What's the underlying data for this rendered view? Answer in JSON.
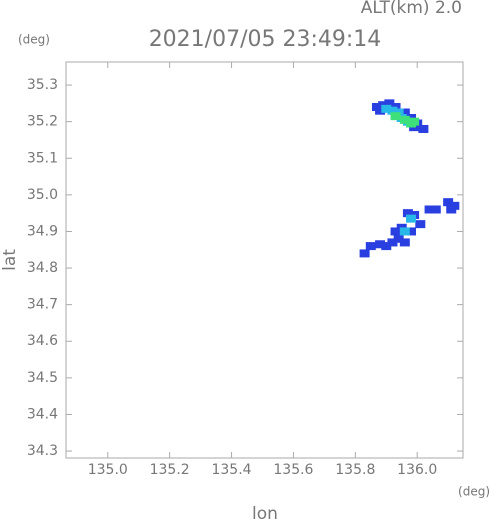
{
  "chart_data": {
    "type": "scatter",
    "title": "2021/07/05 23:49:14",
    "subtitle": "ALT(km) 2.0",
    "x_label": "lon",
    "y_label": "lat",
    "x_unit": "(deg)",
    "y_unit": "(deg)",
    "xlim": [
      134.865,
      136.148
    ],
    "ylim": [
      34.281,
      35.363
    ],
    "xticks": [
      {
        "value": 135,
        "label": "135.0"
      },
      135.2,
      135.4,
      135.6,
      135.8,
      {
        "value": 136,
        "label": "136.0"
      }
    ],
    "yticks": [
      34.3,
      34.4,
      34.5,
      34.6,
      34.7,
      34.8,
      34.9,
      {
        "value": 35,
        "label": "35.0"
      },
      35.1,
      35.2,
      35.3
    ],
    "series": [
      {
        "color": "#2a3fe0",
        "x": [
          135.87,
          135.89,
          135.91,
          135.93,
          135.88,
          135.96,
          135.98,
          136.0,
          136.02,
          135.99,
          135.97,
          135.99,
          135.95,
          135.93,
          135.94,
          135.92,
          135.96,
          135.98,
          136.01,
          135.9,
          135.88,
          136.04,
          136.1,
          136.12,
          136.11,
          135.85,
          135.83,
          136.06
        ],
        "y": [
          35.24,
          35.245,
          35.25,
          35.24,
          35.23,
          35.225,
          35.21,
          35.195,
          35.18,
          35.185,
          34.95,
          34.945,
          34.91,
          34.9,
          34.88,
          34.87,
          34.87,
          34.9,
          34.92,
          34.86,
          34.865,
          34.96,
          34.98,
          34.97,
          34.96,
          34.86,
          34.84,
          34.96
        ]
      },
      {
        "color": "#28b8e8",
        "x": [
          135.9,
          135.92,
          135.94,
          135.95,
          135.97,
          135.98,
          135.96
        ],
        "y": [
          35.235,
          35.23,
          35.225,
          35.21,
          35.2,
          34.935,
          34.9
        ]
      },
      {
        "color": "#3de07a",
        "x": [
          135.93,
          135.96,
          135.98,
          135.99
        ],
        "y": [
          35.215,
          35.205,
          35.195,
          35.2
        ]
      }
    ]
  }
}
